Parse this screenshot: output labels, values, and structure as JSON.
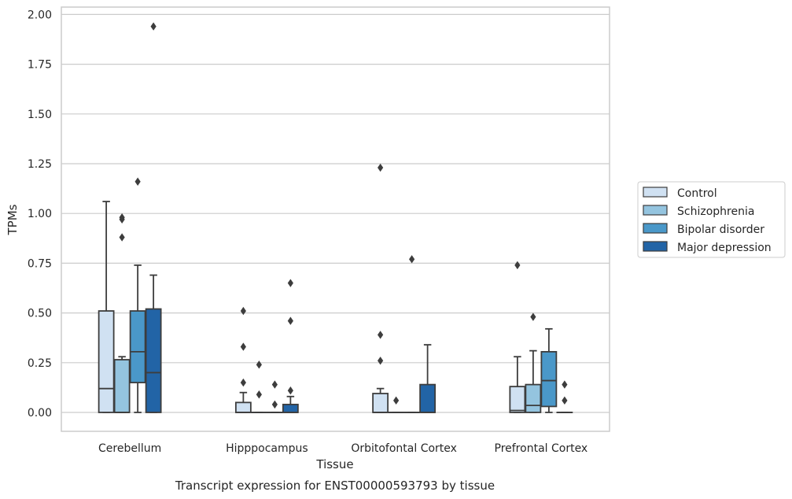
{
  "chart_data": {
    "type": "box",
    "xlabel": "Tissue",
    "ylabel": "TPMs",
    "caption": "Transcript expression for ENST00000593793 by tissue",
    "ylim": [
      -0.1,
      2.02
    ],
    "yticks": [
      "0.00",
      "0.25",
      "0.50",
      "0.75",
      "1.00",
      "1.25",
      "1.50",
      "1.75",
      "2.00"
    ],
    "grid": "horizontal",
    "legend_position": "right",
    "categories": [
      "Cerebellum",
      "Hipppocampus",
      "Orbitofontal Cortex",
      "Prefrontal Cortex"
    ],
    "series": [
      {
        "name": "Control",
        "color": "#d0e1f2",
        "boxes": [
          {
            "q1": 0.0,
            "median": 0.12,
            "q3": 0.51,
            "whislo": 0.0,
            "whishi": 1.06,
            "fliers": []
          },
          {
            "q1": 0.0,
            "median": 0.0,
            "q3": 0.05,
            "whislo": 0.0,
            "whishi": 0.1,
            "fliers": [
              0.15,
              0.33,
              0.51
            ]
          },
          {
            "q1": 0.0,
            "median": 0.0,
            "q3": 0.095,
            "whislo": 0.0,
            "whishi": 0.12,
            "fliers": [
              0.26,
              0.39,
              1.23
            ]
          },
          {
            "q1": 0.0,
            "median": 0.01,
            "q3": 0.13,
            "whislo": 0.0,
            "whishi": 0.28,
            "fliers": [
              0.74
            ]
          }
        ]
      },
      {
        "name": "Schizophrenia",
        "color": "#94c4df",
        "boxes": [
          {
            "q1": 0.0,
            "median": 0.0,
            "q3": 0.265,
            "whislo": 0.0,
            "whishi": 0.28,
            "fliers": [
              0.88,
              0.97,
              0.98
            ]
          },
          {
            "q1": 0.0,
            "median": 0.0,
            "q3": 0.0,
            "whislo": 0.0,
            "whishi": 0.0,
            "fliers": [
              0.09,
              0.24
            ]
          },
          {
            "q1": 0.0,
            "median": 0.0,
            "q3": 0.0,
            "whislo": 0.0,
            "whishi": 0.0,
            "fliers": [
              0.06
            ]
          },
          {
            "q1": 0.0,
            "median": 0.035,
            "q3": 0.14,
            "whislo": 0.0,
            "whishi": 0.31,
            "fliers": [
              0.48
            ]
          }
        ]
      },
      {
        "name": "Bipolar disorder",
        "color": "#4a98c9",
        "boxes": [
          {
            "q1": 0.15,
            "median": 0.305,
            "q3": 0.51,
            "whislo": 0.0,
            "whishi": 0.74,
            "fliers": [
              1.16
            ]
          },
          {
            "q1": 0.0,
            "median": 0.0,
            "q3": 0.0,
            "whislo": 0.0,
            "whishi": 0.0,
            "fliers": [
              0.04,
              0.14
            ]
          },
          {
            "q1": 0.0,
            "median": 0.0,
            "q3": 0.0,
            "whislo": 0.0,
            "whishi": 0.0,
            "fliers": [
              0.77
            ]
          },
          {
            "q1": 0.03,
            "median": 0.16,
            "q3": 0.305,
            "whislo": 0.0,
            "whishi": 0.42,
            "fliers": []
          }
        ]
      },
      {
        "name": "Major depression",
        "color": "#2264a6",
        "boxes": [
          {
            "q1": 0.0,
            "median": 0.2,
            "q3": 0.52,
            "whislo": 0.0,
            "whishi": 0.69,
            "fliers": [
              1.94
            ]
          },
          {
            "q1": 0.0,
            "median": 0.0,
            "q3": 0.04,
            "whislo": 0.0,
            "whishi": 0.08,
            "fliers": [
              0.11,
              0.46,
              0.65
            ]
          },
          {
            "q1": 0.0,
            "median": 0.0,
            "q3": 0.14,
            "whislo": 0.0,
            "whishi": 0.34,
            "fliers": []
          },
          {
            "q1": 0.0,
            "median": 0.0,
            "q3": 0.0,
            "whislo": 0.0,
            "whishi": 0.0,
            "fliers": [
              0.06,
              0.14
            ]
          }
        ]
      }
    ]
  }
}
